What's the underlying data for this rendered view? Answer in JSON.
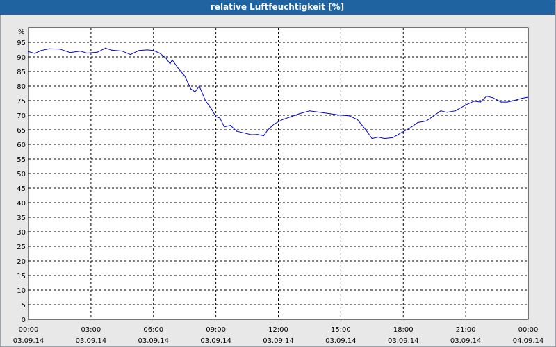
{
  "window": {
    "title": "relative Luftfeuchtigkeit [%]"
  },
  "colors": {
    "titlebar": "#1f64a0",
    "line": "#0000cc",
    "grid": "#000000",
    "plot_bg": "#ffffff",
    "frame_bg": "#e8e8e8"
  },
  "chart_data": {
    "type": "line",
    "title": "relative Luftfeuchtigkeit [%]",
    "ylabel": "%",
    "xlabel": "",
    "ylim": [
      0,
      100
    ],
    "xlim_hours": [
      0,
      24
    ],
    "grid": true,
    "yticks": [
      0,
      5,
      10,
      15,
      20,
      25,
      30,
      35,
      40,
      45,
      50,
      55,
      60,
      65,
      70,
      75,
      80,
      85,
      90,
      95
    ],
    "xticks": [
      {
        "time": "00:00",
        "date": "03.09.14"
      },
      {
        "time": "03:00",
        "date": "03.09.14"
      },
      {
        "time": "06:00",
        "date": "03.09.14"
      },
      {
        "time": "09:00",
        "date": "03.09.14"
      },
      {
        "time": "12:00",
        "date": "03.09.14"
      },
      {
        "time": "15:00",
        "date": "03.09.14"
      },
      {
        "time": "18:00",
        "date": "03.09.14"
      },
      {
        "time": "21:00",
        "date": "03.09.14"
      },
      {
        "time": "00:00",
        "date": "04.09.14"
      }
    ],
    "series": [
      {
        "values": [
          [
            0.0,
            91.8
          ],
          [
            0.3,
            91.2
          ],
          [
            0.6,
            92.2
          ],
          [
            1.0,
            92.8
          ],
          [
            1.5,
            92.7
          ],
          [
            2.0,
            91.5
          ],
          [
            2.5,
            92.0
          ],
          [
            2.8,
            91.3
          ],
          [
            3.3,
            91.6
          ],
          [
            3.7,
            93.0
          ],
          [
            4.0,
            92.3
          ],
          [
            4.5,
            92.0
          ],
          [
            4.9,
            90.8
          ],
          [
            5.3,
            92.2
          ],
          [
            5.7,
            92.4
          ],
          [
            6.0,
            92.2
          ],
          [
            6.3,
            91.3
          ],
          [
            6.6,
            89.6
          ],
          [
            6.8,
            87.6
          ],
          [
            6.9,
            89.0
          ],
          [
            7.2,
            86.0
          ],
          [
            7.5,
            83.5
          ],
          [
            7.8,
            79.0
          ],
          [
            8.0,
            78.0
          ],
          [
            8.2,
            80.0
          ],
          [
            8.5,
            75.0
          ],
          [
            8.8,
            72.0
          ],
          [
            9.0,
            69.5
          ],
          [
            9.2,
            69.0
          ],
          [
            9.4,
            66.0
          ],
          [
            9.7,
            66.5
          ],
          [
            10.0,
            64.5
          ],
          [
            10.3,
            64.0
          ],
          [
            10.7,
            63.3
          ],
          [
            11.0,
            63.4
          ],
          [
            11.3,
            63.0
          ],
          [
            11.5,
            65.0
          ],
          [
            11.8,
            67.0
          ],
          [
            12.2,
            68.5
          ],
          [
            12.6,
            69.5
          ],
          [
            13.0,
            70.5
          ],
          [
            13.5,
            71.5
          ],
          [
            14.0,
            71.0
          ],
          [
            14.5,
            70.5
          ],
          [
            15.0,
            70.0
          ],
          [
            15.4,
            69.8
          ],
          [
            15.8,
            68.5
          ],
          [
            16.2,
            65.0
          ],
          [
            16.5,
            62.0
          ],
          [
            16.8,
            62.5
          ],
          [
            17.1,
            62.0
          ],
          [
            17.5,
            62.3
          ],
          [
            17.9,
            64.0
          ],
          [
            18.3,
            65.5
          ],
          [
            18.7,
            67.5
          ],
          [
            19.1,
            68.0
          ],
          [
            19.5,
            70.0
          ],
          [
            19.8,
            71.5
          ],
          [
            20.1,
            71.0
          ],
          [
            20.5,
            71.5
          ],
          [
            21.0,
            73.5
          ],
          [
            21.4,
            74.8
          ],
          [
            21.7,
            74.5
          ],
          [
            22.0,
            76.5
          ],
          [
            22.3,
            76.0
          ],
          [
            22.7,
            74.5
          ],
          [
            23.0,
            74.5
          ],
          [
            23.3,
            75.0
          ],
          [
            23.7,
            75.8
          ],
          [
            24.0,
            76.2
          ]
        ]
      }
    ]
  }
}
